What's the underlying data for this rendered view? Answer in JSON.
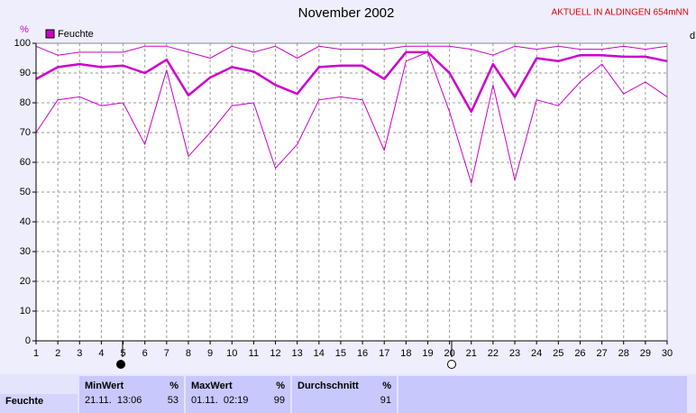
{
  "chart_data": {
    "type": "line",
    "title": "November 2002",
    "subtitle": "AKTUELL IN ALDINGEN 654mNN",
    "y_label": "%",
    "x_label": "d",
    "x": [
      1,
      2,
      3,
      4,
      5,
      6,
      7,
      8,
      9,
      10,
      11,
      12,
      13,
      14,
      15,
      16,
      17,
      18,
      19,
      20,
      21,
      22,
      23,
      24,
      25,
      26,
      27,
      28,
      29,
      30
    ],
    "xlim": [
      1,
      30
    ],
    "xticks": [
      1,
      2,
      3,
      4,
      5,
      6,
      7,
      8,
      9,
      10,
      11,
      12,
      13,
      14,
      15,
      16,
      17,
      18,
      19,
      20,
      21,
      22,
      23,
      24,
      25,
      26,
      27,
      28,
      29,
      30
    ],
    "ylim": [
      0,
      100
    ],
    "yticks": [
      0,
      10,
      20,
      30,
      40,
      50,
      60,
      70,
      80,
      90,
      100
    ],
    "grid": true,
    "legend": "upper left",
    "series": [
      {
        "color": "#cc00cc",
        "width": 1,
        "values": [
          99,
          96,
          97,
          97,
          97,
          99,
          99,
          97,
          95,
          99,
          97,
          99,
          95,
          99,
          98,
          98,
          98,
          99,
          99,
          99,
          98,
          96,
          99,
          98,
          99,
          98,
          98,
          99,
          98,
          99
        ]
      },
      {
        "name": "Feuchte",
        "color": "#cc00cc",
        "width": 2.5,
        "values": [
          88,
          92,
          93,
          92,
          92.5,
          90,
          94.5,
          82.5,
          88.5,
          92,
          90.5,
          86,
          83,
          92,
          92.5,
          92.5,
          88,
          97,
          97,
          90,
          77,
          93,
          82,
          95,
          94,
          96,
          96,
          95.5,
          95.5,
          94
        ]
      },
      {
        "color": "#cc00cc",
        "width": 1,
        "values": [
          70,
          81,
          82,
          79,
          80,
          66,
          91,
          62,
          70,
          79,
          80,
          58,
          66,
          81,
          82,
          81,
          64,
          94,
          97,
          77,
          53,
          86,
          54,
          81,
          79,
          87,
          93,
          83,
          87,
          82
        ]
      }
    ]
  },
  "table": {
    "row_label": "Feuchte",
    "unit": "%",
    "headers": [
      "MinWert",
      "MaxWert",
      "Durchschnitt"
    ],
    "min_time": "21.11.  13:06",
    "min": 53,
    "max_time": "01.11.  02:19",
    "max": 99,
    "avg": 91
  }
}
